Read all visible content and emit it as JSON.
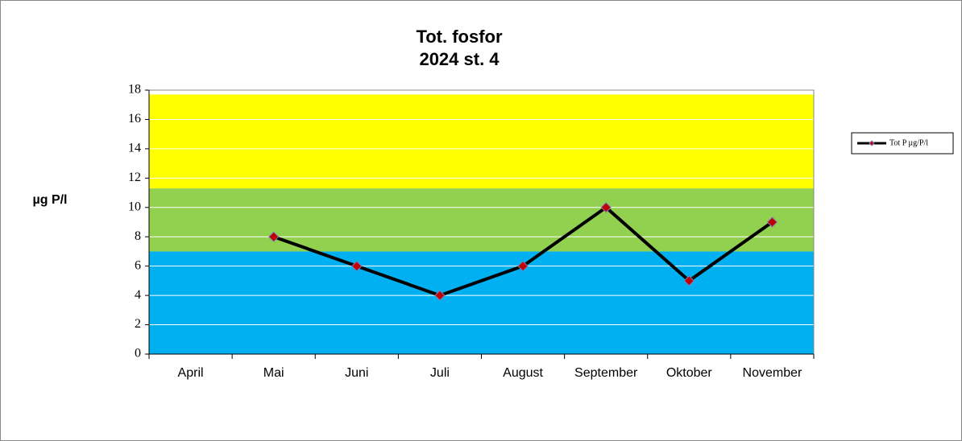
{
  "chart_data": {
    "type": "line",
    "title": "Tot. fosfor",
    "subtitle": "2024 st. 4",
    "y_label": "µg P/l",
    "categories": [
      "April",
      "Mai",
      "Juni",
      "Juli",
      "August",
      "September",
      "Oktober",
      "November"
    ],
    "series": [
      {
        "name": "Tot P µg/P/l",
        "color": "#000000",
        "marker_color": "#c00000",
        "values": [
          null,
          8,
          6,
          4,
          6,
          10,
          5,
          9
        ]
      }
    ],
    "ylim": [
      0,
      18
    ],
    "yticks": [
      0,
      2,
      4,
      6,
      8,
      10,
      12,
      14,
      16,
      18
    ],
    "grid": true,
    "bands": [
      {
        "from": 0,
        "to": 7,
        "color": "#00b0f0"
      },
      {
        "from": 7,
        "to": 11.3,
        "color": "#92d050"
      },
      {
        "from": 11.3,
        "to": 17.7,
        "color": "#ffff00"
      }
    ],
    "legend": "right"
  }
}
